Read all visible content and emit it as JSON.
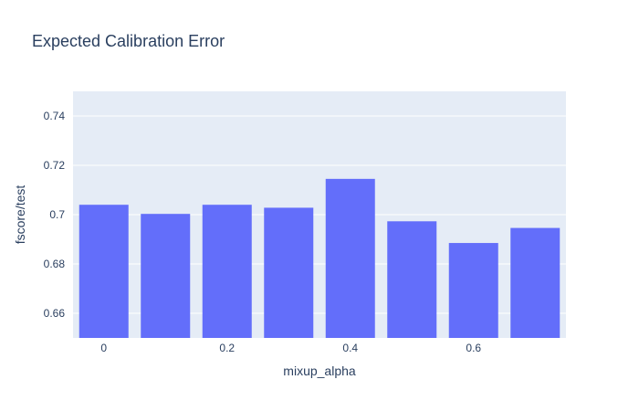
{
  "chart_data": {
    "type": "bar",
    "title": "Expected Calibration Error",
    "xlabel": "mixup_alpha",
    "ylabel": "fscore/test",
    "x": [
      0,
      0.1,
      0.2,
      0.3,
      0.4,
      0.5,
      0.6,
      0.7
    ],
    "values": [
      0.704,
      0.7003,
      0.704,
      0.7028,
      0.7145,
      0.6973,
      0.6885,
      0.6946
    ],
    "ylim": [
      0.65,
      0.75
    ],
    "xlim": [
      -0.05,
      0.75
    ],
    "x_ticks": [
      0,
      0.2,
      0.4,
      0.6
    ],
    "x_tick_labels": [
      "0",
      "0.2",
      "0.4",
      "0.6"
    ],
    "y_ticks": [
      0.66,
      0.68,
      0.7,
      0.72,
      0.74
    ],
    "y_tick_labels": [
      "0.66",
      "0.68",
      "0.7",
      "0.72",
      "0.74"
    ],
    "grid": true,
    "colors": {
      "bar": "#636efa",
      "plot_bg": "#e5ecf6",
      "grid": "#ffffff",
      "text": "#2a3f5f"
    }
  }
}
